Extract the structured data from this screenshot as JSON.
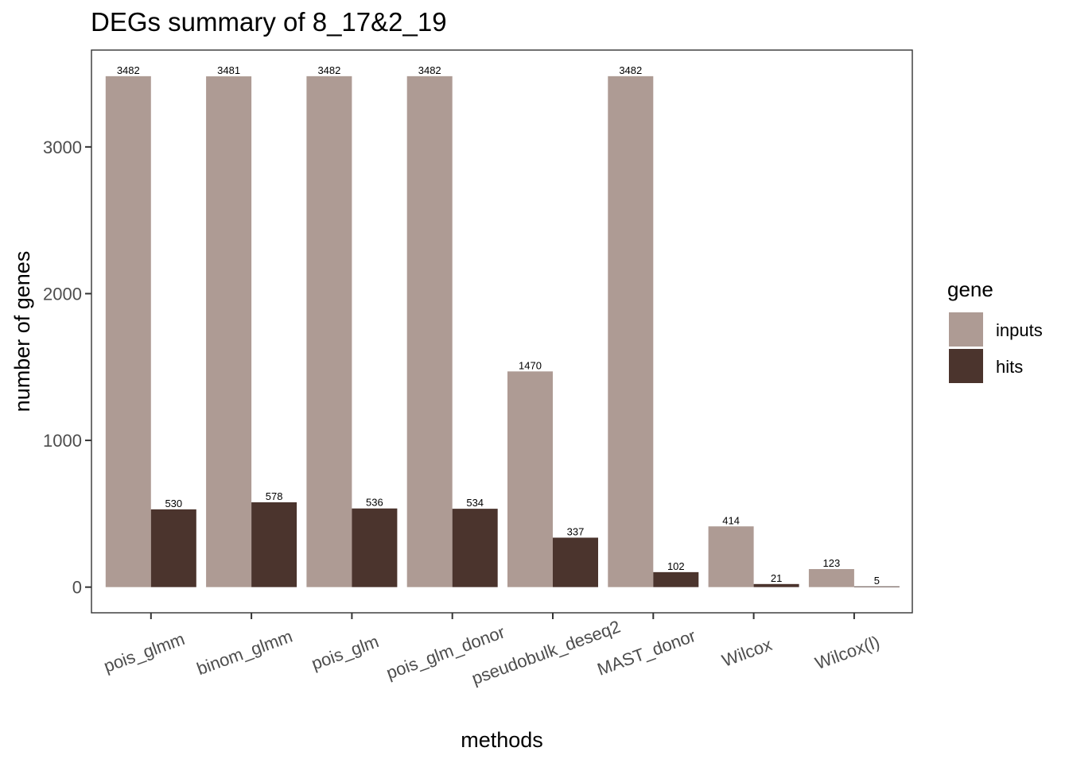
{
  "chart_data": {
    "type": "bar",
    "title": "DEGs summary of  8_17&2_19",
    "xlabel": "methods",
    "ylabel": "number of genes",
    "categories": [
      "pois_glmm",
      "binom_glmm",
      "pois_glm",
      "pois_glm_donor",
      "pseudobulk_deseq2",
      "MAST_donor",
      "Wilcox",
      "Wilcox(l)"
    ],
    "series": [
      {
        "name": "inputs",
        "color": "#ae9b94",
        "values": [
          3482,
          3481,
          3482,
          3482,
          1470,
          3482,
          414,
          123
        ]
      },
      {
        "name": "hits",
        "color": "#4b342d",
        "values": [
          530,
          578,
          536,
          534,
          337,
          102,
          21,
          5
        ]
      }
    ],
    "ylim": [
      -175,
      3660
    ],
    "yticks": [
      0,
      1000,
      2000,
      3000
    ],
    "legend": {
      "title": "gene",
      "position": "right"
    },
    "grid": false
  }
}
